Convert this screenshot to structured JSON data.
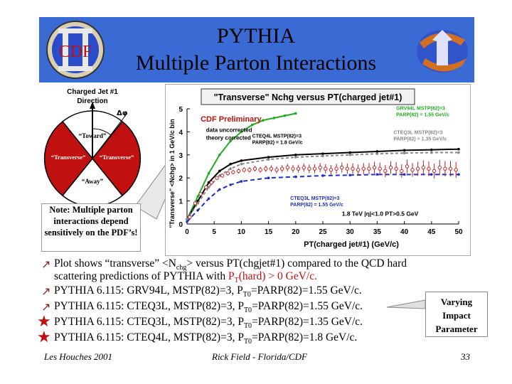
{
  "header": {
    "title_line1": "PYTHIA",
    "title_line2": "Multiple Parton Interactions",
    "left_logo": "CDF",
    "colors": {
      "header_bg": "#3a6bd4",
      "accent_red": "#c01010"
    }
  },
  "diagram": {
    "label_top": "Charged Jet #1",
    "label_direction": "Direction",
    "label_dphi": "Δφ",
    "toward": "“Toward”",
    "transverse_left": "“Transverse”",
    "transverse_right": "“Transverse”",
    "away": "“Away”"
  },
  "note": "Note: Multiple parton interactions depend sensitively on the PDF’s!",
  "chart_data": {
    "type": "scatter",
    "title": "\"Transverse\" Nchg versus PT(charged jet#1)",
    "xlabel": "PT(charged jet#1)  (GeV/c)",
    "ylabel": "\"Transverse\" <Nchg> in 1 GeV/c bin",
    "xlim": [
      0,
      50
    ],
    "ylim": [
      0,
      5
    ],
    "xticks": [
      "0",
      "5",
      "10",
      "15",
      "20",
      "25",
      "30",
      "35",
      "40",
      "45",
      "50"
    ],
    "yticks": [
      "0",
      "1",
      "2",
      "3",
      "4",
      "5"
    ],
    "annotations": {
      "preliminary": "CDF Preliminary",
      "uncorrected": "data uncorrected",
      "theory": "theory corrected",
      "cuts": "1.8 TeV |η|<1.0 PT>0.5 GeV",
      "grv": "GRV94L MSTP(82)=3 PARP(82) = 1.55 GeV/c",
      "cteq4": "CTEQ4L MSTP(82)=3 PARP(82) = 1.8 GeV/c",
      "cteq3_135": "CTEQ3L MSTP(82)=3 PARP(82) = 1.35 GeV/c",
      "cteq3_155": "CTEQ3L MSTP(82)=3 PARP(82) = 1.55 GeV/c"
    },
    "series": [
      {
        "name": "data",
        "x": [
          0.5,
          1.5,
          2.5,
          3.5,
          4.5,
          5.5,
          6.5,
          7.5,
          8.5,
          9.5,
          10.5,
          11.5,
          12.5,
          13.5,
          14.5,
          15.5,
          16.5,
          17.5,
          18.5,
          19.5,
          20.5,
          21.5,
          22.5,
          23.5,
          24.5,
          25.5,
          26.5,
          27.5,
          28.5,
          29.5,
          30.5,
          31.5,
          32.5,
          33.5,
          34.5,
          35.5,
          36.5,
          37.5,
          38.5,
          39.5,
          40.5,
          41.5,
          42.5,
          43.5,
          44.5,
          45.5,
          46.5,
          47.5,
          48.5,
          49.5
        ],
        "y": [
          0.3,
          0.9,
          1.3,
          1.6,
          1.8,
          2.0,
          2.1,
          2.2,
          2.25,
          2.3,
          2.35,
          2.35,
          2.4,
          2.35,
          2.4,
          2.4,
          2.35,
          2.4,
          2.45,
          2.4,
          2.4,
          2.45,
          2.4,
          2.4,
          2.45,
          2.4,
          2.35,
          2.4,
          2.45,
          2.4,
          2.4,
          2.35,
          2.4,
          2.4,
          2.45,
          2.4,
          2.3,
          2.45,
          2.4,
          2.3,
          2.5,
          2.35,
          2.4,
          2.45,
          2.4,
          2.3,
          2.45,
          2.4,
          2.4,
          2.35
        ],
        "color": "#c02020"
      },
      {
        "name": "GRV94L",
        "x": [
          0,
          2,
          4,
          6,
          8,
          10,
          12,
          14,
          16,
          18,
          20
        ],
        "y": [
          0.2,
          1.2,
          2.2,
          3.0,
          3.6,
          4.0,
          4.3,
          4.5,
          4.6,
          4.7,
          4.8
        ],
        "color": "#22aa22"
      },
      {
        "name": "CTEQ4L",
        "x": [
          0,
          2,
          4,
          6,
          8,
          10,
          15,
          20,
          25,
          30,
          35,
          40,
          45,
          50
        ],
        "y": [
          0.2,
          1.0,
          1.8,
          2.3,
          2.6,
          2.75,
          2.9,
          3.0,
          3.05,
          3.1,
          3.15,
          3.2,
          3.22,
          3.25
        ],
        "color": "#000000"
      },
      {
        "name": "CTEQ3L 1.35",
        "x": [
          0,
          2,
          4,
          6,
          8,
          10,
          15,
          20,
          25,
          30,
          35,
          40,
          45,
          50
        ],
        "y": [
          0.2,
          0.9,
          1.6,
          2.1,
          2.4,
          2.6,
          2.8,
          2.9,
          2.95,
          3.0,
          3.05,
          3.08,
          3.1,
          3.1
        ],
        "color": "#888888"
      },
      {
        "name": "CTEQ3L 1.55",
        "x": [
          0,
          2,
          4,
          6,
          8,
          10,
          15,
          20,
          25,
          30,
          35,
          40,
          45,
          50
        ],
        "y": [
          0.1,
          0.6,
          1.1,
          1.5,
          1.7,
          1.85,
          2.0,
          2.05,
          2.1,
          2.12,
          2.15,
          2.15,
          2.15,
          2.15
        ],
        "color": "#2030c0"
      }
    ]
  },
  "bullets": [
    {
      "icon": "arrow-icon",
      "line1": "Plot shows “transverse” <N",
      "sub": "chg",
      "line1b": "> versus PT(chgjet#1) compared to the QCD hard",
      "line2": "scattering predictions of PYTHIA with ",
      "pt": "P",
      "ptsub": "T",
      "pttail": "(hard) > 0 GeV/c."
    },
    {
      "icon": "arrow-icon",
      "text": "PYTHIA 6.115: GRV94L, MSTP(82)=3, P",
      "sub": "T0",
      "tail": "=PARP(82)=1.55 GeV/c."
    },
    {
      "icon": "arrow-icon",
      "text": "PYTHIA 6.115: CTEQ3L, MSTP(82)=3, P",
      "sub": "T0",
      "tail": "=PARP(82)=1.55 GeV/c."
    },
    {
      "icon": "star-icon",
      "text": "PYTHIA 6.115: CTEQ3L, MSTP(82)=3, P",
      "sub": "T0",
      "tail": "=PARP(82)=1.35 GeV/c."
    },
    {
      "icon": "star-icon",
      "text": "PYTHIA 6.115: CTEQ4L, MSTP(82)=3, P",
      "sub": "T0",
      "tail": "=PARP(82)=1.8 GeV/c."
    }
  ],
  "callout": {
    "line1": "Varying",
    "line2": "Impact",
    "line3": "Parameter"
  },
  "footer": {
    "left": "Les Houches 2001",
    "center": "Rick Field - Florida/CDF",
    "page": "33"
  }
}
